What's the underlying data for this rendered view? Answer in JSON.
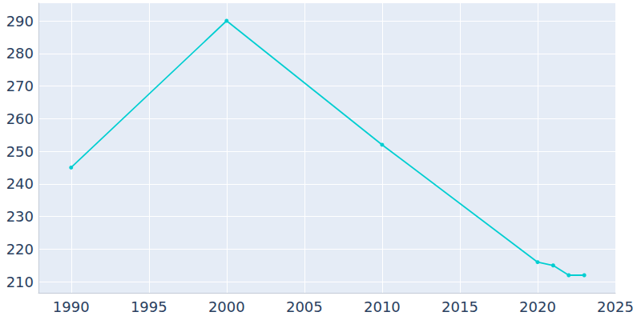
{
  "chart_data": {
    "type": "line",
    "x": [
      1990,
      2000,
      2010,
      2020,
      2021,
      2022,
      2023
    ],
    "values": [
      245,
      290,
      252,
      216,
      215,
      212,
      212
    ],
    "color": "#00ced1",
    "marker": "circle",
    "xlim": [
      1987.9,
      2025
    ],
    "xticks": [
      1990,
      1995,
      2000,
      2005,
      2010,
      2015,
      2020,
      2025
    ],
    "ylim": [
      206.6,
      295.4
    ],
    "yticks": [
      210,
      220,
      230,
      240,
      250,
      260,
      270,
      280,
      290
    ],
    "grid": true
  }
}
